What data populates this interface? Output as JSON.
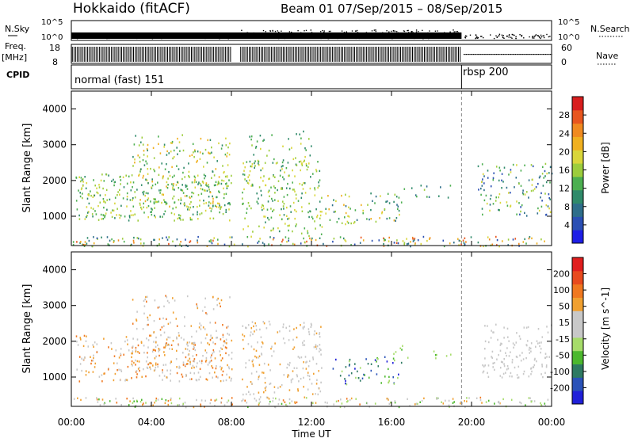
{
  "header": {
    "station": "Hokkaido (fitACF)",
    "beam_info": "Beam 01  07/Sep/2015 – 08/Sep/2015"
  },
  "aux_panels": {
    "nsky_label": "N.Sky",
    "nsearch_label": "N.Search",
    "nsky_ticks": [
      "10^5",
      "10^0"
    ],
    "nsearch_ticks": [
      "10^5",
      "10^0"
    ],
    "freq_label": "Freq.",
    "freq_unit": "[MHz]",
    "freq_ticks": [
      "18",
      "8"
    ],
    "nave_label": "Nave",
    "nave_ticks": [
      "60",
      "0"
    ],
    "cpid_label": "CPID",
    "cpid_modes": [
      {
        "name": "normal (fast) 151",
        "start_hour": 0,
        "end_hour": 19.5
      },
      {
        "name": "rbsp 200",
        "start_hour": 19.5,
        "end_hour": 24
      }
    ]
  },
  "colors": {
    "power": [
      "#1e1ee6",
      "#2a4fb4",
      "#2e6e8a",
      "#2f8a6a",
      "#4caf50",
      "#9ccd3c",
      "#d9d63a",
      "#f0b020",
      "#f08a20",
      "#e8561e",
      "#d81e1e"
    ],
    "velocity": [
      "#2020d8",
      "#2a52b8",
      "#2e7a62",
      "#4cb82e",
      "#a6dc6a",
      "#c8c8c8",
      "#c8c8c8",
      "#f0a030",
      "#f07820",
      "#e84a1e",
      "#e01e1e"
    ]
  },
  "chart_data": [
    {
      "type": "heatmap",
      "name": "Power",
      "ylabel": "Slant Range [km]",
      "xlabel": "Time UT",
      "ylim": [
        180,
        4500
      ],
      "x_ticks": [
        "00:00",
        "04:00",
        "08:00",
        "12:00",
        "16:00",
        "20:00",
        "00:00"
      ],
      "x_tick_hours": [
        0,
        4,
        8,
        12,
        16,
        20,
        24
      ],
      "y_ticks": [
        1000,
        2000,
        3000,
        4000
      ],
      "colorbar": {
        "label": "Power [dB]",
        "ticks": [
          "4",
          "8",
          "12",
          "16",
          "20",
          "24",
          "28"
        ],
        "range": [
          0,
          30
        ]
      },
      "regions": [
        {
          "t0": 0.2,
          "t1": 8.0,
          "r0": 900,
          "r1": 2200,
          "density": 0.55,
          "level": [
            3,
            6
          ]
        },
        {
          "t0": 3.0,
          "t1": 7.9,
          "r0": 1200,
          "r1": 3300,
          "density": 0.35,
          "level": [
            3,
            7
          ]
        },
        {
          "t0": 8.5,
          "t1": 12.5,
          "r0": 400,
          "r1": 2600,
          "density": 0.45,
          "level": [
            3,
            6
          ]
        },
        {
          "t0": 8.8,
          "t1": 12.0,
          "r0": 2400,
          "r1": 3400,
          "density": 0.25,
          "level": [
            3,
            6
          ]
        },
        {
          "t0": 12.5,
          "t1": 16.5,
          "r0": 800,
          "r1": 1700,
          "density": 0.35,
          "level": [
            2,
            7
          ]
        },
        {
          "t0": 16.0,
          "t1": 19.0,
          "r0": 1500,
          "r1": 1900,
          "density": 0.2,
          "level": [
            2,
            5
          ]
        },
        {
          "t0": 20.3,
          "t1": 24.0,
          "r0": 1000,
          "r1": 2500,
          "density": 0.4,
          "level": [
            1,
            6
          ]
        },
        {
          "t0": 0.0,
          "t1": 24.0,
          "r0": 180,
          "r1": 450,
          "density": 0.6,
          "level": [
            1,
            9
          ]
        }
      ]
    },
    {
      "type": "heatmap",
      "name": "Velocity",
      "ylabel": "Slant Range [km]",
      "xlabel": "Time UT",
      "ylim": [
        180,
        4500
      ],
      "x_ticks": [
        "00:00",
        "04:00",
        "08:00",
        "12:00",
        "16:00",
        "20:00",
        "00:00"
      ],
      "x_tick_hours": [
        0,
        4,
        8,
        12,
        16,
        20,
        24
      ],
      "y_ticks": [
        1000,
        2000,
        3000,
        4000
      ],
      "colorbar": {
        "label": "Velocity [m s^-1]",
        "ticks": [
          "200",
          "100",
          "50",
          "15",
          "-15",
          "-50",
          "-100",
          "-200"
        ],
        "range": [
          -250,
          250
        ]
      },
      "regions": [
        {
          "t0": 0.2,
          "t1": 8.0,
          "r0": 900,
          "r1": 2200,
          "density": 0.45,
          "level": [
            5,
            8
          ]
        },
        {
          "t0": 3.0,
          "t1": 7.9,
          "r0": 1200,
          "r1": 3300,
          "density": 0.3,
          "level": [
            5,
            8
          ]
        },
        {
          "t0": 8.5,
          "t1": 12.5,
          "r0": 400,
          "r1": 2600,
          "density": 0.4,
          "level": [
            5,
            7
          ]
        },
        {
          "t0": 13.0,
          "t1": 16.5,
          "r0": 800,
          "r1": 1600,
          "density": 0.35,
          "level": [
            0,
            4
          ]
        },
        {
          "t0": 16.0,
          "t1": 19.0,
          "r0": 1500,
          "r1": 1900,
          "density": 0.2,
          "level": [
            3,
            4
          ]
        },
        {
          "t0": 20.5,
          "t1": 24.0,
          "r0": 1000,
          "r1": 2500,
          "density": 0.45,
          "level": [
            5,
            6
          ]
        },
        {
          "t0": 0.0,
          "t1": 24.0,
          "r0": 180,
          "r1": 450,
          "density": 0.55,
          "level": [
            3,
            8
          ]
        }
      ]
    }
  ]
}
